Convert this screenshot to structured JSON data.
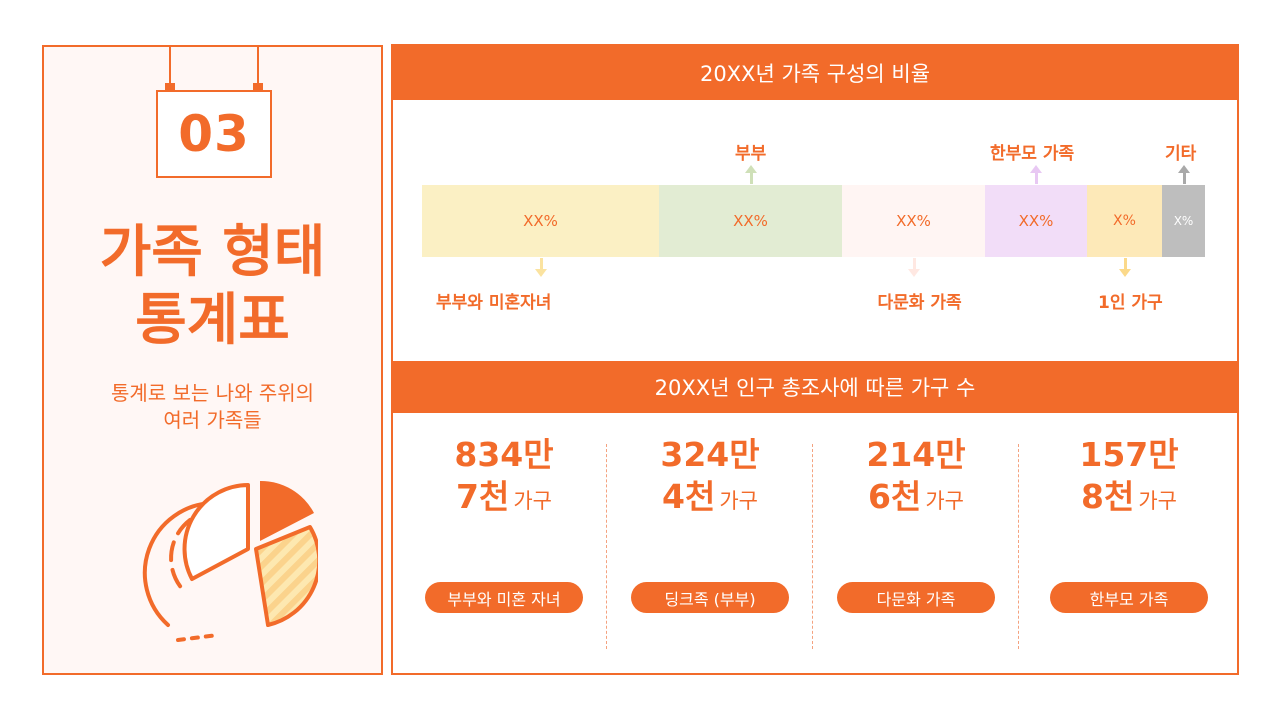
{
  "left": {
    "number": "03",
    "title_line1": "가족 형태",
    "title_line2": "통계표",
    "subtitle_line1": "통계로 보는 나와 주위의",
    "subtitle_line2": "여러 가족들"
  },
  "section1": {
    "header": "20XX년 가족 구성의 비율",
    "segments": [
      {
        "value": "XX%",
        "label": "부부와 미혼자녀",
        "color": "#fbf0c4",
        "text_color": "#f26b2a"
      },
      {
        "value": "XX%",
        "label": "부부",
        "color": "#e2ecd3",
        "text_color": "#f26b2a"
      },
      {
        "value": "XX%",
        "label": "다문화 가족",
        "color": "#fff5f3",
        "text_color": "#f26b2a"
      },
      {
        "value": "XX%",
        "label": "한부모 가족",
        "color": "#f2ddf8",
        "text_color": "#f26b2a"
      },
      {
        "value": "X%",
        "label": "1인 가구",
        "color": "#fde9b8",
        "text_color": "#f26b2a"
      },
      {
        "value": "X%",
        "label": "기타",
        "color": "#bebebe",
        "text_color": "#ffffff"
      }
    ]
  },
  "section2": {
    "header": "20XX년 인구 총조사에 따른 가구 수",
    "stats": [
      {
        "line1": "834만",
        "line2": "7천",
        "unit": "가구",
        "label": "부부와 미혼 자녀"
      },
      {
        "line1": "324만",
        "line2": "4천",
        "unit": "가구",
        "label": "딩크족 (부부)"
      },
      {
        "line1": "214만",
        "line2": "6천",
        "unit": "가구",
        "label": "다문화 가족"
      },
      {
        "line1": "157만",
        "line2": "8천",
        "unit": "가구",
        "label": "한부모 가족"
      }
    ]
  },
  "colors": {
    "accent": "#f26b2a",
    "panel_bg": "#fff7f5"
  },
  "icons": [
    "pie-chart-icon",
    "arrow-up-icon",
    "arrow-down-icon"
  ]
}
